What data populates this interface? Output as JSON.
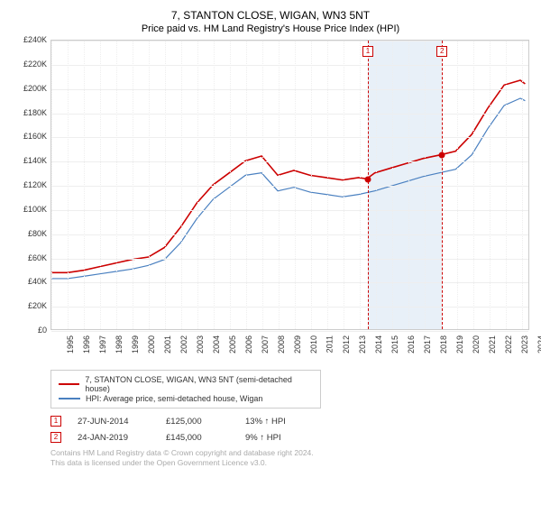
{
  "title": "7, STANTON CLOSE, WIGAN, WN3 5NT",
  "subtitle": "Price paid vs. HM Land Registry's House Price Index (HPI)",
  "chart": {
    "type": "line",
    "xlim": [
      1995,
      2024.5
    ],
    "ylim": [
      0,
      240000
    ],
    "ytick_step": 20000,
    "yticks": [
      "£0",
      "£20K",
      "£40K",
      "£60K",
      "£80K",
      "£100K",
      "£120K",
      "£140K",
      "£160K",
      "£180K",
      "£200K",
      "£220K",
      "£240K"
    ],
    "xticks": [
      1995,
      1996,
      1997,
      1998,
      1999,
      2000,
      2001,
      2002,
      2003,
      2004,
      2005,
      2006,
      2007,
      2008,
      2009,
      2010,
      2011,
      2012,
      2013,
      2014,
      2015,
      2016,
      2017,
      2018,
      2019,
      2020,
      2021,
      2022,
      2023,
      2024
    ],
    "grid_color": "#eeeeee",
    "border_color": "#cccccc",
    "band_color": "#e8f0f8",
    "band_range": [
      2014.5,
      2019.07
    ],
    "series": [
      {
        "name": "7, STANTON CLOSE, WIGAN, WN3 5NT (semi-detached house)",
        "color": "#cc0000",
        "width": 1.6,
        "data": [
          [
            1995,
            47000
          ],
          [
            1996,
            47000
          ],
          [
            1997,
            49000
          ],
          [
            1998,
            52000
          ],
          [
            1999,
            55000
          ],
          [
            2000,
            58000
          ],
          [
            2001,
            60000
          ],
          [
            2002,
            68000
          ],
          [
            2003,
            85000
          ],
          [
            2004,
            105000
          ],
          [
            2005,
            120000
          ],
          [
            2006,
            130000
          ],
          [
            2007,
            140000
          ],
          [
            2008,
            144000
          ],
          [
            2009,
            128000
          ],
          [
            2010,
            132000
          ],
          [
            2011,
            128000
          ],
          [
            2012,
            126000
          ],
          [
            2013,
            124000
          ],
          [
            2014,
            126000
          ],
          [
            2014.5,
            125000
          ],
          [
            2015,
            130000
          ],
          [
            2016,
            134000
          ],
          [
            2017,
            138000
          ],
          [
            2018,
            142000
          ],
          [
            2019.07,
            145000
          ],
          [
            2020,
            148000
          ],
          [
            2021,
            162000
          ],
          [
            2022,
            184000
          ],
          [
            2023,
            203000
          ],
          [
            2024,
            207000
          ],
          [
            2024.3,
            204000
          ]
        ]
      },
      {
        "name": "HPI: Average price, semi-detached house, Wigan",
        "color": "#4a80c0",
        "width": 1.2,
        "data": [
          [
            1995,
            42000
          ],
          [
            1996,
            42000
          ],
          [
            1997,
            44000
          ],
          [
            1998,
            46000
          ],
          [
            1999,
            48000
          ],
          [
            2000,
            50000
          ],
          [
            2001,
            53000
          ],
          [
            2002,
            58000
          ],
          [
            2003,
            72000
          ],
          [
            2004,
            92000
          ],
          [
            2005,
            108000
          ],
          [
            2006,
            118000
          ],
          [
            2007,
            128000
          ],
          [
            2008,
            130000
          ],
          [
            2009,
            115000
          ],
          [
            2010,
            118000
          ],
          [
            2011,
            114000
          ],
          [
            2012,
            112000
          ],
          [
            2013,
            110000
          ],
          [
            2014,
            112000
          ],
          [
            2015,
            115000
          ],
          [
            2016,
            119000
          ],
          [
            2017,
            123000
          ],
          [
            2018,
            127000
          ],
          [
            2019,
            130000
          ],
          [
            2020,
            133000
          ],
          [
            2021,
            145000
          ],
          [
            2022,
            167000
          ],
          [
            2023,
            186000
          ],
          [
            2024,
            192000
          ],
          [
            2024.3,
            190000
          ]
        ]
      }
    ],
    "events": [
      {
        "n": 1,
        "date": "27-JUN-2014",
        "x": 2014.5,
        "price": 125000,
        "price_label": "£125,000",
        "hpi_diff": "13% ↑ HPI"
      },
      {
        "n": 2,
        "date": "24-JAN-2019",
        "x": 2019.07,
        "price": 145000,
        "price_label": "£145,000",
        "hpi_diff": "9% ↑ HPI"
      }
    ]
  },
  "footer": {
    "line1": "Contains HM Land Registry data © Crown copyright and database right 2024.",
    "line2": "This data is licensed under the Open Government Licence v3.0."
  }
}
